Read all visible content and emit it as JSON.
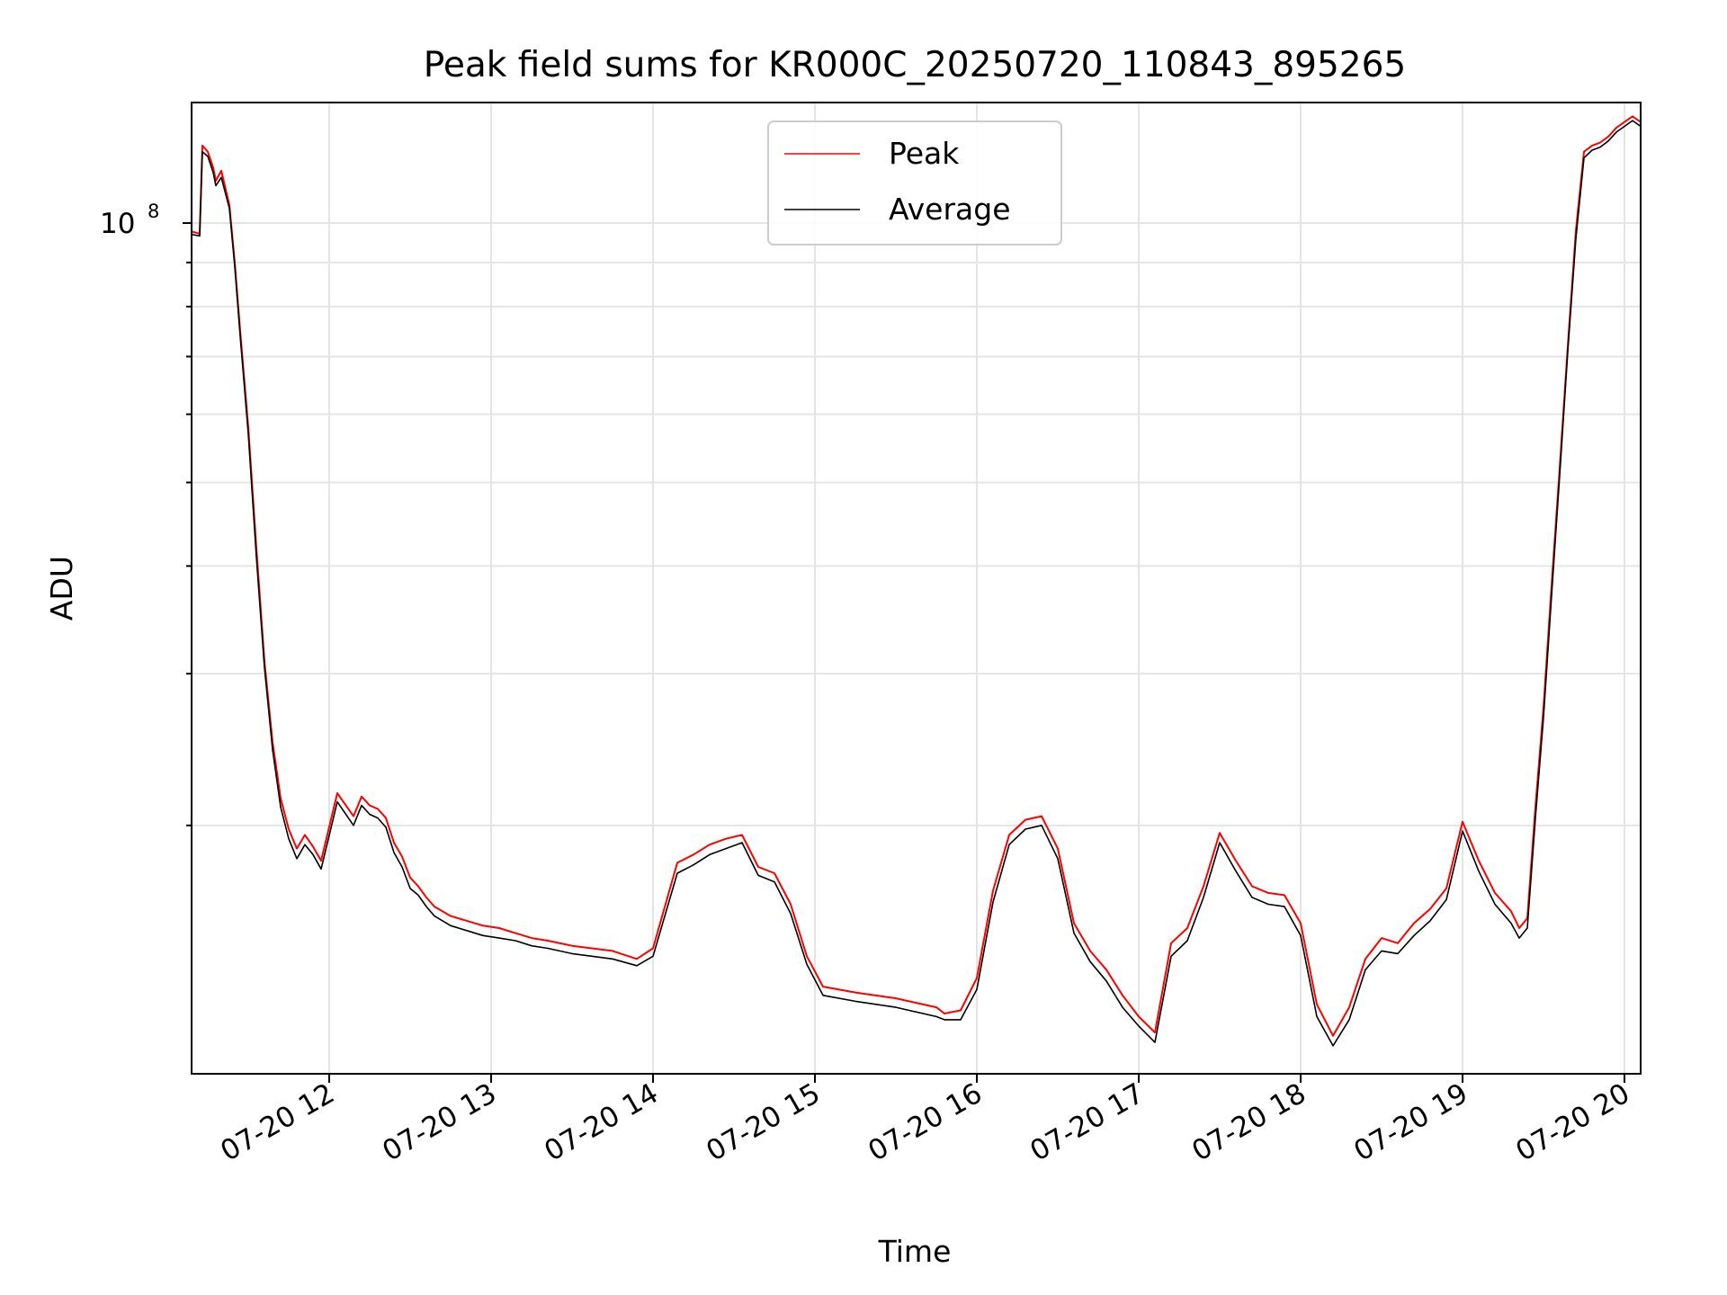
{
  "chart_data": {
    "type": "line",
    "title": "Peak field sums for KR000C_20250720_110843_895265",
    "xlabel": "Time",
    "ylabel": "ADU",
    "y_scale": "log",
    "x_range": [
      "07-20 11:09",
      "07-20 20:06"
    ],
    "ylim": [
      10300000,
      138000000
    ],
    "x_ticks": [
      "07-20 12",
      "07-20 13",
      "07-20 14",
      "07-20 15",
      "07-20 16",
      "07-20 17",
      "07-20 18",
      "07-20 19",
      "07-20 20"
    ],
    "y_tick_label": {
      "base": "10",
      "exponent": "8"
    },
    "grid": true,
    "legend_position": "top-center",
    "colors": {
      "peak": "#ff0000",
      "average": "#000000",
      "grid": "#e5e5e5"
    },
    "series": [
      {
        "name": "Peak",
        "color": "#ff0000",
        "x": [
          "07-20 11:09",
          "07-20 11:12",
          "07-20 11:13",
          "07-20 11:15",
          "07-20 11:17",
          "07-20 11:18",
          "07-20 11:20",
          "07-20 11:23",
          "07-20 11:25",
          "07-20 11:27",
          "07-20 11:30",
          "07-20 11:33",
          "07-20 11:36",
          "07-20 11:39",
          "07-20 11:42",
          "07-20 11:45",
          "07-20 11:48",
          "07-20 11:51",
          "07-20 11:54",
          "07-20 11:57",
          "07-20 12:03",
          "07-20 12:09",
          "07-20 12:12",
          "07-20 12:15",
          "07-20 12:18",
          "07-20 12:21",
          "07-20 12:24",
          "07-20 12:27",
          "07-20 12:30",
          "07-20 12:33",
          "07-20 12:36",
          "07-20 12:39",
          "07-20 12:45",
          "07-20 12:51",
          "07-20 12:57",
          "07-20 13:03",
          "07-20 13:09",
          "07-20 13:15",
          "07-20 13:21",
          "07-20 13:30",
          "07-20 13:45",
          "07-20 13:54",
          "07-20 14:00",
          "07-20 14:09",
          "07-20 14:15",
          "07-20 14:21",
          "07-20 14:27",
          "07-20 14:33",
          "07-20 14:39",
          "07-20 14:45",
          "07-20 14:51",
          "07-20 14:57",
          "07-20 15:03",
          "07-20 15:15",
          "07-20 15:30",
          "07-20 15:45",
          "07-20 15:48",
          "07-20 15:54",
          "07-20 16:00",
          "07-20 16:06",
          "07-20 16:12",
          "07-20 16:18",
          "07-20 16:24",
          "07-20 16:30",
          "07-20 16:36",
          "07-20 16:42",
          "07-20 16:48",
          "07-20 16:54",
          "07-20 17:00",
          "07-20 17:06",
          "07-20 17:12",
          "07-20 17:18",
          "07-20 17:24",
          "07-20 17:30",
          "07-20 17:36",
          "07-20 17:42",
          "07-20 17:48",
          "07-20 17:54",
          "07-20 18:00",
          "07-20 18:06",
          "07-20 18:12",
          "07-20 18:18",
          "07-20 18:24",
          "07-20 18:30",
          "07-20 18:36",
          "07-20 18:42",
          "07-20 18:48",
          "07-20 18:54",
          "07-20 19:00",
          "07-20 19:06",
          "07-20 19:12",
          "07-20 19:18",
          "07-20 19:21",
          "07-20 19:24",
          "07-20 19:27",
          "07-20 19:30",
          "07-20 19:33",
          "07-20 19:36",
          "07-20 19:39",
          "07-20 19:42",
          "07-20 19:45",
          "07-20 19:48",
          "07-20 19:51",
          "07-20 19:54",
          "07-20 19:57",
          "07-20 20:00",
          "07-20 20:03",
          "07-20 20:06"
        ],
        "values": [
          97800000,
          97200000,
          123000000,
          121000000,
          116000000,
          112000000,
          115000000,
          105000000,
          90000000,
          75000000,
          58000000,
          42000000,
          31000000,
          25000000,
          21500000,
          19800000,
          18800000,
          19500000,
          18900000,
          18200000,
          21800000,
          20500000,
          21600000,
          21100000,
          20900000,
          20400000,
          19100000,
          18400000,
          17400000,
          17000000,
          16500000,
          16100000,
          15700000,
          15500000,
          15300000,
          15200000,
          15000000,
          14800000,
          14700000,
          14500000,
          14300000,
          14000000,
          14400000,
          18100000,
          18500000,
          19000000,
          19300000,
          19500000,
          17900000,
          17600000,
          16200000,
          14100000,
          13000000,
          12800000,
          12600000,
          12300000,
          12100000,
          12200000,
          13300000,
          16800000,
          19500000,
          20300000,
          20500000,
          18800000,
          15400000,
          14300000,
          13600000,
          12700000,
          12000000,
          11500000,
          14600000,
          15200000,
          17000000,
          19600000,
          18200000,
          17000000,
          16700000,
          16600000,
          15400000,
          12400000,
          11400000,
          12300000,
          14000000,
          14800000,
          14600000,
          15400000,
          16000000,
          16900000,
          20200000,
          18200000,
          16700000,
          15900000,
          15200000,
          15600000,
          21000000,
          27400000,
          38000000,
          52000000,
          72000000,
          98000000,
          121000000,
          123000000,
          124000000,
          126000000,
          129000000,
          131000000,
          133000000,
          131000000
        ]
      },
      {
        "name": "Average",
        "color": "#000000",
        "x": [
          "07-20 11:09",
          "07-20 11:12",
          "07-20 11:13",
          "07-20 11:15",
          "07-20 11:17",
          "07-20 11:18",
          "07-20 11:20",
          "07-20 11:23",
          "07-20 11:25",
          "07-20 11:27",
          "07-20 11:30",
          "07-20 11:33",
          "07-20 11:36",
          "07-20 11:39",
          "07-20 11:42",
          "07-20 11:45",
          "07-20 11:48",
          "07-20 11:51",
          "07-20 11:54",
          "07-20 11:57",
          "07-20 12:03",
          "07-20 12:09",
          "07-20 12:12",
          "07-20 12:15",
          "07-20 12:18",
          "07-20 12:21",
          "07-20 12:24",
          "07-20 12:27",
          "07-20 12:30",
          "07-20 12:33",
          "07-20 12:36",
          "07-20 12:39",
          "07-20 12:45",
          "07-20 12:51",
          "07-20 12:57",
          "07-20 13:03",
          "07-20 13:09",
          "07-20 13:15",
          "07-20 13:21",
          "07-20 13:30",
          "07-20 13:45",
          "07-20 13:54",
          "07-20 14:00",
          "07-20 14:09",
          "07-20 14:15",
          "07-20 14:21",
          "07-20 14:27",
          "07-20 14:33",
          "07-20 14:39",
          "07-20 14:45",
          "07-20 14:51",
          "07-20 14:57",
          "07-20 15:03",
          "07-20 15:15",
          "07-20 15:30",
          "07-20 15:45",
          "07-20 15:48",
          "07-20 15:54",
          "07-20 16:00",
          "07-20 16:06",
          "07-20 16:12",
          "07-20 16:18",
          "07-20 16:24",
          "07-20 16:30",
          "07-20 16:36",
          "07-20 16:42",
          "07-20 16:48",
          "07-20 16:54",
          "07-20 17:00",
          "07-20 17:06",
          "07-20 17:12",
          "07-20 17:18",
          "07-20 17:24",
          "07-20 17:30",
          "07-20 17:36",
          "07-20 17:42",
          "07-20 17:48",
          "07-20 17:54",
          "07-20 18:00",
          "07-20 18:06",
          "07-20 18:12",
          "07-20 18:18",
          "07-20 18:24",
          "07-20 18:30",
          "07-20 18:36",
          "07-20 18:42",
          "07-20 18:48",
          "07-20 18:54",
          "07-20 19:00",
          "07-20 19:06",
          "07-20 19:12",
          "07-20 19:18",
          "07-20 19:21",
          "07-20 19:24",
          "07-20 19:27",
          "07-20 19:30",
          "07-20 19:33",
          "07-20 19:36",
          "07-20 19:39",
          "07-20 19:42",
          "07-20 19:45",
          "07-20 19:48",
          "07-20 19:51",
          "07-20 19:54",
          "07-20 19:57",
          "07-20 20:00",
          "07-20 20:03",
          "07-20 20:06"
        ],
        "values": [
          97000000,
          96600000,
          121000000,
          119500000,
          114500000,
          110500000,
          113000000,
          104000000,
          89000000,
          74000000,
          57000000,
          41000000,
          30500000,
          24500000,
          21000000,
          19300000,
          18300000,
          19000000,
          18500000,
          17800000,
          21300000,
          20000000,
          21100000,
          20600000,
          20400000,
          19900000,
          18600000,
          17900000,
          16900000,
          16600000,
          16100000,
          15700000,
          15300000,
          15100000,
          14900000,
          14800000,
          14700000,
          14500000,
          14400000,
          14200000,
          14000000,
          13750000,
          14100000,
          17600000,
          18000000,
          18500000,
          18800000,
          19100000,
          17500000,
          17200000,
          15800000,
          13800000,
          12700000,
          12500000,
          12300000,
          12000000,
          11900000,
          11900000,
          12900000,
          16300000,
          19000000,
          19800000,
          20000000,
          18300000,
          15000000,
          13900000,
          13200000,
          12300000,
          11700000,
          11200000,
          14100000,
          14700000,
          16500000,
          19100000,
          17700000,
          16500000,
          16200000,
          16100000,
          14900000,
          12000000,
          11100000,
          11900000,
          13600000,
          14300000,
          14200000,
          14900000,
          15500000,
          16400000,
          19700000,
          17700000,
          16200000,
          15400000,
          14800000,
          15200000,
          20400000,
          26700000,
          37000000,
          51000000,
          71000000,
          96000000,
          119000000,
          121500000,
          122500000,
          124500000,
          127500000,
          129500000,
          131500000,
          129500000
        ]
      }
    ]
  }
}
